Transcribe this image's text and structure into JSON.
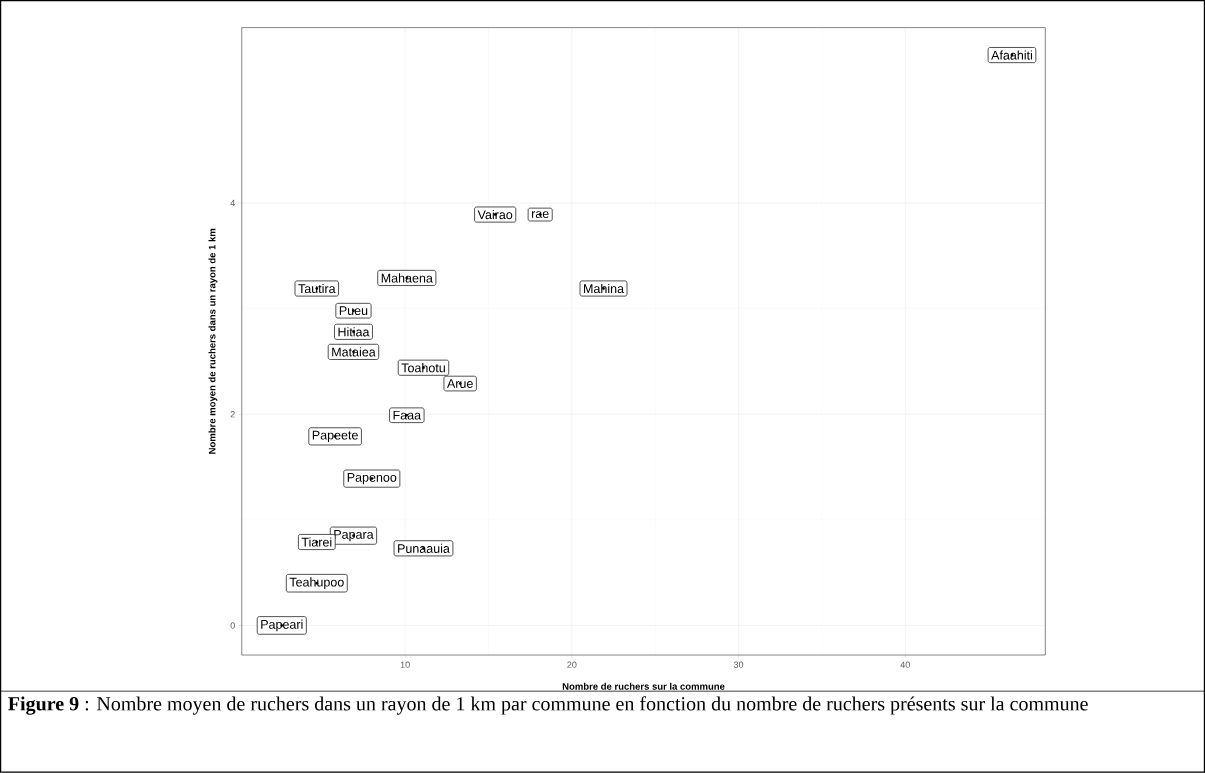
{
  "chart_data": {
    "type": "scatter",
    "xlabel": "Nombre de ruchers sur la commune",
    "ylabel": "Nombre moyen de ruchers dans un rayon de 1 km",
    "grid": true,
    "x": [
      46.4,
      18.1,
      15.4,
      21.9,
      10.1,
      4.7,
      6.9,
      6.9,
      6.9,
      11.1,
      13.3,
      10.1,
      5.8,
      8.0,
      6.9,
      4.7,
      11.1,
      4.7,
      2.6
    ],
    "values": [
      5.4,
      3.89,
      3.89,
      3.19,
      3.29,
      3.19,
      2.98,
      2.78,
      2.59,
      2.44,
      2.29,
      1.99,
      1.79,
      1.39,
      0.85,
      0.79,
      0.73,
      0.4,
      0
    ],
    "xlim": [
      0.2,
      48.4
    ],
    "ylim": [
      -0.28,
      5.66
    ],
    "xticks": [
      10,
      20,
      30,
      40
    ],
    "yticks": [
      0,
      2,
      4
    ],
    "annotations": [
      {
        "text": "Afaahiti",
        "x": 46.4,
        "y": 5.4
      },
      {
        "text": "rae",
        "x": 18.1,
        "y": 3.89
      },
      {
        "text": "Vairao",
        "x": 15.4,
        "y": 3.89
      },
      {
        "text": "Mahina",
        "x": 21.9,
        "y": 3.19
      },
      {
        "text": "Mahaena",
        "x": 10.1,
        "y": 3.29
      },
      {
        "text": "Tautira",
        "x": 4.7,
        "y": 3.19
      },
      {
        "text": "Pueu",
        "x": 6.9,
        "y": 2.98
      },
      {
        "text": "Hitiaa",
        "x": 6.9,
        "y": 2.78
      },
      {
        "text": "Mataiea",
        "x": 6.9,
        "y": 2.59
      },
      {
        "text": "Toahotu",
        "x": 11.1,
        "y": 2.44
      },
      {
        "text": "Arue",
        "x": 13.3,
        "y": 2.29
      },
      {
        "text": "Faaa",
        "x": 10.1,
        "y": 1.99
      },
      {
        "text": "Papeete",
        "x": 5.8,
        "y": 1.79
      },
      {
        "text": "Papenoo",
        "x": 8.0,
        "y": 1.39
      },
      {
        "text": "Papara",
        "x": 6.9,
        "y": 0.85
      },
      {
        "text": "Tiarei",
        "x": 4.7,
        "y": 0.79
      },
      {
        "text": "Punaauia",
        "x": 11.1,
        "y": 0.73
      },
      {
        "text": "Teahupoo",
        "x": 4.7,
        "y": 0.4
      },
      {
        "text": "Papeari",
        "x": 2.6,
        "y": 0
      },
      "**Figure 9** : Nombre moyen de ruchers dans un rayon de 1 km par commune en fonction du nombre de ruchers présents sur la commune"
    ]
  }
}
